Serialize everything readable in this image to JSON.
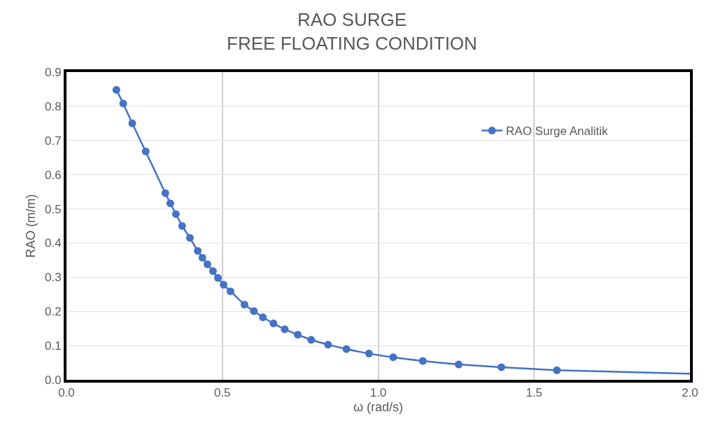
{
  "chart_data": {
    "type": "line",
    "title": "RAO SURGE\nFREE FLOATING CONDITION",
    "xlabel": "ω (rad/s)",
    "ylabel": "RAO (m/m)",
    "xlim": [
      0,
      2
    ],
    "xticks": [
      {
        "value": 0,
        "label": "0.0"
      },
      {
        "value": 0.5,
        "label": "0.5"
      },
      {
        "value": 1,
        "label": "1.0"
      },
      {
        "value": 1.5,
        "label": "1.5"
      },
      {
        "value": 2,
        "label": "2.0"
      }
    ],
    "ylim": [
      0,
      0.9
    ],
    "yticks": [
      {
        "value": 0,
        "label": "0.0"
      },
      0.1,
      0.2,
      0.3,
      0.4,
      0.5,
      0.6,
      0.7,
      0.8,
      0.9
    ],
    "grid": true,
    "legend": "top right",
    "marker": "circle",
    "line_style": "solid",
    "series": [
      {
        "name": "RAO Surge Analitik",
        "color": "#4472c4",
        "x": [
          0.16,
          0.182,
          0.211,
          0.254,
          0.317,
          0.333,
          0.351,
          0.371,
          0.396,
          0.421,
          0.436,
          0.452,
          0.47,
          0.486,
          0.504,
          0.526,
          0.571,
          0.601,
          0.63,
          0.664,
          0.7,
          0.742,
          0.785,
          0.839,
          0.898,
          0.97,
          1.048,
          1.143,
          1.258,
          1.395,
          1.573
        ],
        "values": [
          0.848,
          0.808,
          0.75,
          0.668,
          0.546,
          0.516,
          0.485,
          0.45,
          0.415,
          0.377,
          0.357,
          0.338,
          0.318,
          0.298,
          0.278,
          0.259,
          0.22,
          0.201,
          0.183,
          0.165,
          0.148,
          0.132,
          0.117,
          0.103,
          0.09,
          0.077,
          0.066,
          0.055,
          0.045,
          0.037,
          0.028
        ]
      },
      {
        "color": "#4472c4",
        "marker": "none",
        "x": [
          1.573,
          2.0
        ],
        "values": [
          0.028,
          0.018
        ]
      }
    ]
  }
}
